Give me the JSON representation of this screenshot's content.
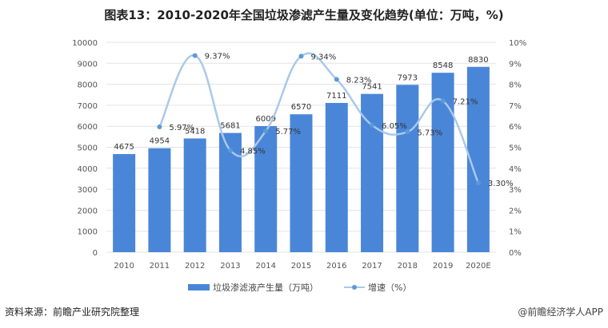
{
  "title": "图表13：2010-2020年全国垃圾渗滤产生量及变化趋势(单位：万吨，%)",
  "source": "资料来源：前瞻产业研究院整理",
  "credit": "@前瞻经济学人APP",
  "chart_data": {
    "type": "bar+line",
    "categories": [
      "2010",
      "2011",
      "2012",
      "2013",
      "2014",
      "2015",
      "2016",
      "2017",
      "2018",
      "2019",
      "2020E"
    ],
    "series": [
      {
        "name": "垃圾渗滤液产生量（万吨）",
        "type": "bar",
        "axis": "left",
        "color": "#4a86d8",
        "values": [
          4675,
          4954,
          5418,
          5681,
          6009,
          6570,
          7111,
          7541,
          7973,
          8548,
          8830
        ],
        "labels": [
          "4675",
          "4954",
          "5418",
          "5681",
          "6009",
          "6570",
          "7111",
          "7541",
          "7973",
          "8548",
          "8830"
        ]
      },
      {
        "name": "增速（%）",
        "type": "line",
        "axis": "right",
        "color": "#a9c9ea",
        "smooth": true,
        "values": [
          null,
          5.97,
          9.37,
          4.85,
          5.77,
          9.34,
          8.23,
          6.05,
          5.73,
          7.21,
          3.3
        ],
        "labels": [
          "",
          "5.97%",
          "9.37%",
          "4.85%",
          "5.77%",
          "9.34%",
          "8.23%",
          "6.05%",
          "5.73%",
          "7.21%",
          "3.30%"
        ]
      }
    ],
    "y_left": {
      "min": 0,
      "max": 10000,
      "ticks": [
        "0",
        "1000",
        "2000",
        "3000",
        "4000",
        "5000",
        "6000",
        "7000",
        "8000",
        "9000",
        "10000"
      ]
    },
    "y_right": {
      "min": 0,
      "max": 10,
      "ticks": [
        "0%",
        "1%",
        "2%",
        "3%",
        "4%",
        "5%",
        "6%",
        "7%",
        "8%",
        "9%",
        "10%"
      ]
    },
    "grid": true,
    "legend": "bottom"
  }
}
